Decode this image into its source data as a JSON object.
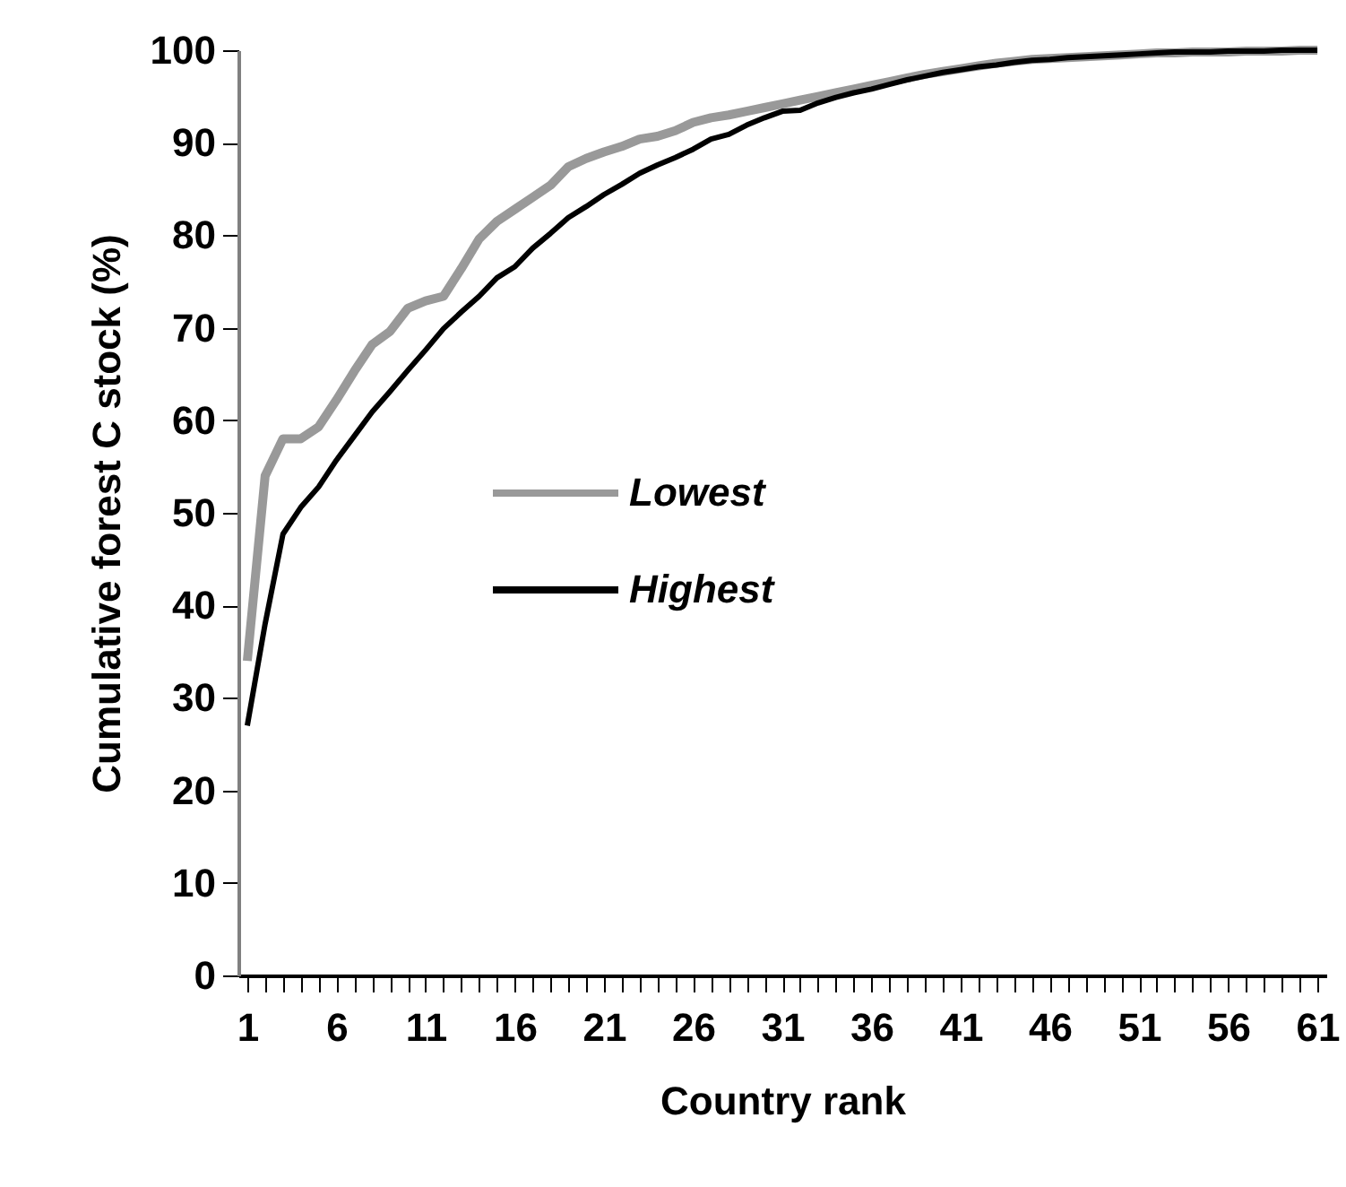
{
  "chart_data": {
    "type": "line",
    "xlabel": "Country rank",
    "ylabel": "Cumulative forest C stock (%)",
    "x": [
      1,
      2,
      3,
      4,
      5,
      6,
      7,
      8,
      9,
      10,
      11,
      12,
      13,
      14,
      15,
      16,
      17,
      18,
      19,
      20,
      21,
      22,
      23,
      24,
      25,
      26,
      27,
      28,
      29,
      30,
      31,
      32,
      33,
      34,
      35,
      36,
      37,
      38,
      39,
      40,
      41,
      42,
      43,
      44,
      45,
      46,
      47,
      48,
      49,
      50,
      51,
      52,
      53,
      54,
      55,
      56,
      57,
      58,
      59,
      60,
      61
    ],
    "series": [
      {
        "name": "Lowest",
        "color": "#999999",
        "values": [
          34,
          54,
          58,
          58,
          59.3,
          62.2,
          65.3,
          68.2,
          69.6,
          72.1,
          72.9,
          73.4,
          76.4,
          79.6,
          81.5,
          82.8,
          84.1,
          85.4,
          87.4,
          88.3,
          89,
          89.6,
          90.4,
          90.7,
          91.3,
          92.2,
          92.7,
          93,
          93.4,
          93.8,
          94.2,
          94.6,
          95,
          95.4,
          95.8,
          96.2,
          96.6,
          97,
          97.4,
          97.7,
          98,
          98.3,
          98.6,
          98.8,
          99,
          99.1,
          99.2,
          99.3,
          99.4,
          99.5,
          99.6,
          99.7,
          99.7,
          99.8,
          99.8,
          99.8,
          99.9,
          99.9,
          99.9,
          100,
          100
        ]
      },
      {
        "name": "Highest",
        "color": "#000000",
        "values": [
          27,
          38,
          47.7,
          50.6,
          52.8,
          55.7,
          58.3,
          60.9,
          63.1,
          65.4,
          67.6,
          69.9,
          71.7,
          73.4,
          75.4,
          76.6,
          78.6,
          80.2,
          81.9,
          83.1,
          84.4,
          85.5,
          86.7,
          87.6,
          88.4,
          89.3,
          90.4,
          90.9,
          91.9,
          92.7,
          93.4,
          93.5,
          94.3,
          94.9,
          95.4,
          95.8,
          96.3,
          96.8,
          97.2,
          97.6,
          97.9,
          98.2,
          98.4,
          98.7,
          98.9,
          99,
          99.2,
          99.3,
          99.4,
          99.5,
          99.6,
          99.7,
          99.8,
          99.8,
          99.8,
          99.9,
          99.9,
          99.9,
          100,
          100,
          100
        ]
      }
    ],
    "xlim": [
      0.5,
      61.5
    ],
    "xticks": [
      1,
      {
        "value": 2,
        "label": null
      },
      {
        "value": 3,
        "label": null
      },
      {
        "value": 4,
        "label": null
      },
      {
        "value": 5,
        "label": null
      },
      6,
      {
        "value": 7,
        "label": null
      },
      {
        "value": 8,
        "label": null
      },
      {
        "value": 9,
        "label": null
      },
      {
        "value": 10,
        "label": null
      },
      11,
      {
        "value": 12,
        "label": null
      },
      {
        "value": 13,
        "label": null
      },
      {
        "value": 14,
        "label": null
      },
      {
        "value": 15,
        "label": null
      },
      16,
      {
        "value": 17,
        "label": null
      },
      {
        "value": 18,
        "label": null
      },
      {
        "value": 19,
        "label": null
      },
      {
        "value": 20,
        "label": null
      },
      21,
      {
        "value": 22,
        "label": null
      },
      {
        "value": 23,
        "label": null
      },
      {
        "value": 24,
        "label": null
      },
      {
        "value": 25,
        "label": null
      },
      26,
      {
        "value": 27,
        "label": null
      },
      {
        "value": 28,
        "label": null
      },
      {
        "value": 29,
        "label": null
      },
      {
        "value": 30,
        "label": null
      },
      31,
      {
        "value": 32,
        "label": null
      },
      {
        "value": 33,
        "label": null
      },
      {
        "value": 34,
        "label": null
      },
      {
        "value": 35,
        "label": null
      },
      36,
      {
        "value": 37,
        "label": null
      },
      {
        "value": 38,
        "label": null
      },
      {
        "value": 39,
        "label": null
      },
      {
        "value": 40,
        "label": null
      },
      41,
      {
        "value": 42,
        "label": null
      },
      {
        "value": 43,
        "label": null
      },
      {
        "value": 44,
        "label": null
      },
      {
        "value": 45,
        "label": null
      },
      46,
      {
        "value": 47,
        "label": null
      },
      {
        "value": 48,
        "label": null
      },
      {
        "value": 49,
        "label": null
      },
      {
        "value": 50,
        "label": null
      },
      51,
      {
        "value": 52,
        "label": null
      },
      {
        "value": 53,
        "label": null
      },
      {
        "value": 54,
        "label": null
      },
      {
        "value": 55,
        "label": null
      },
      56,
      {
        "value": 57,
        "label": null
      },
      {
        "value": 58,
        "label": null
      },
      {
        "value": 59,
        "label": null
      },
      {
        "value": 60,
        "label": null
      },
      61
    ],
    "ylim": [
      0,
      100
    ],
    "yticks": [
      0,
      10,
      20,
      30,
      40,
      50,
      60,
      70,
      80,
      90,
      100
    ],
    "grid": false,
    "legend": "center",
    "marker": "none",
    "line_style": "solid"
  }
}
